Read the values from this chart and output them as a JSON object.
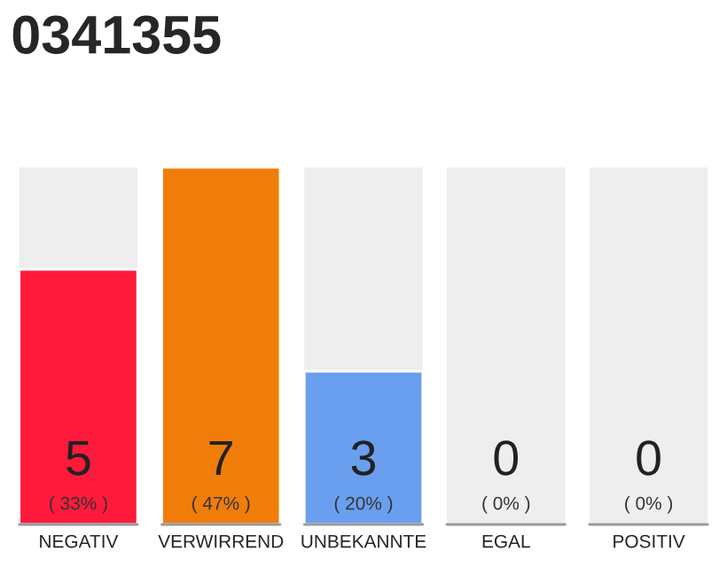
{
  "chart_data": {
    "type": "bar",
    "title": "0341355",
    "categories": [
      "NEGATIV",
      "VERWIRREND",
      "UNBEKANNTE",
      "EGAL",
      "POSITIV"
    ],
    "values": [
      5,
      7,
      3,
      0,
      0
    ],
    "colors": [
      "#ff1a3c",
      "#f07d0a",
      "#6a9fef",
      null,
      null
    ],
    "data_labels": true,
    "annotations": [
      {
        "text": "( 33% )",
        "x": "NEGATIV",
        "y": 0
      },
      {
        "text": "( 47% )",
        "x": "VERWIRREND",
        "y": 0
      },
      {
        "text": "( 20% )",
        "x": "UNBEKANNTE",
        "y": 0
      },
      {
        "text": "( 0% )",
        "x": "EGAL",
        "y": 0
      },
      {
        "text": "( 0% )",
        "x": "POSITIV",
        "y": 0
      }
    ],
    "grid": false,
    "legend": false
  }
}
